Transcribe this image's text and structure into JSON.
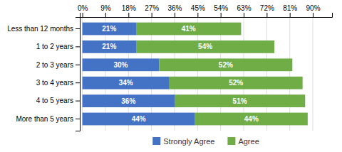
{
  "chart_data": {
    "type": "bar",
    "orientation": "horizontal",
    "stacked": true,
    "categories": [
      "Less than 12 months",
      "1 to 2 years",
      "2 to 3 years",
      "3 to 4 years",
      "4 to 5 years",
      "More than 5 years"
    ],
    "series": [
      {
        "name": "Strongly Agree",
        "color": "#4472C4",
        "values": [
          21,
          21,
          30,
          34,
          36,
          44
        ],
        "value_labels": [
          "21%",
          "21%",
          "30%",
          "34%",
          "36%",
          "44%"
        ]
      },
      {
        "name": "Agree",
        "color": "#70AD47",
        "values": [
          41,
          54,
          52,
          52,
          51,
          44
        ],
        "value_labels": [
          "41%",
          "54%",
          "52%",
          "52%",
          "51%",
          "44%"
        ]
      }
    ],
    "xlim": [
      -1,
      97.5
    ],
    "xticks": [
      {
        "value": 0,
        "label": "0%"
      },
      {
        "value": 9,
        "label": "9%"
      },
      {
        "value": 18,
        "label": "18%"
      },
      {
        "value": 27,
        "label": "27%"
      },
      {
        "value": 36,
        "label": "36%"
      },
      {
        "value": 45,
        "label": "45%"
      },
      {
        "value": 54,
        "label": "54%"
      },
      {
        "value": 63,
        "label": "63%"
      },
      {
        "value": 72,
        "label": "72%"
      },
      {
        "value": 81,
        "label": "81%"
      },
      {
        "value": 90,
        "label": "90%"
      }
    ],
    "grid": true,
    "data_labels": true,
    "legend": "bottom"
  }
}
